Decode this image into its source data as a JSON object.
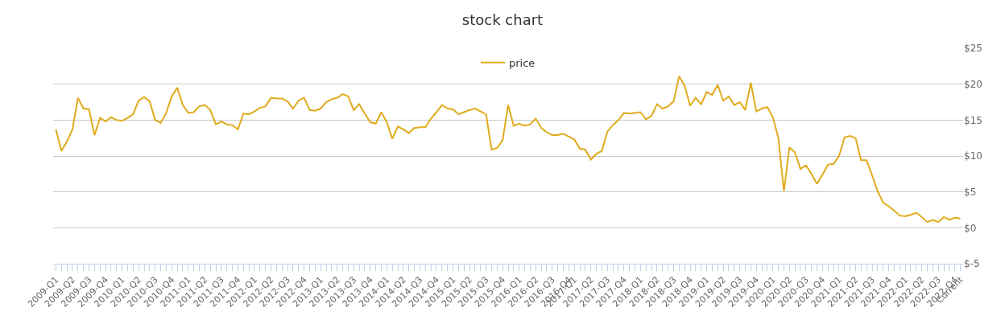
{
  "chart_data": {
    "type": "line",
    "title": "stock chart",
    "categories": [
      "2009-Q1",
      null,
      null,
      "2009-Q2",
      null,
      null,
      "2009-Q3",
      null,
      null,
      "2009-Q4",
      null,
      null,
      "2010-Q1",
      null,
      null,
      "2010-Q2",
      null,
      null,
      "2010-Q3",
      null,
      null,
      "2010-Q4",
      null,
      null,
      "2011-Q1",
      null,
      null,
      "2011-Q2",
      null,
      null,
      "2011-Q3",
      null,
      null,
      "2011-Q4",
      null,
      null,
      "2012-Q1",
      null,
      null,
      "2012-Q2",
      null,
      null,
      "2012-Q3",
      null,
      null,
      "2012-Q4",
      null,
      null,
      "2013-Q1",
      null,
      null,
      "2013-Q2",
      null,
      null,
      "2013-Q3",
      null,
      null,
      "2013-Q4",
      null,
      null,
      "2014-Q1",
      null,
      null,
      "2014-Q2",
      null,
      null,
      "2014-Q3",
      null,
      null,
      "2014-Q4",
      null,
      null,
      "2015-Q1",
      null,
      null,
      "2015-Q2",
      null,
      null,
      "2015-Q3",
      null,
      null,
      "2015-Q4",
      null,
      null,
      "2016-Q1",
      null,
      null,
      "2016-Q2",
      null,
      null,
      "2016-Q3",
      null,
      null,
      "2016-Q4",
      "2017-Q1",
      null,
      null,
      "2017-Q2",
      null,
      null,
      "2017-Q3",
      null,
      null,
      "2017-Q4",
      null,
      null,
      "2018-Q1",
      null,
      null,
      "2018-Q2",
      null,
      null,
      "2018-Q3",
      null,
      null,
      "2018-Q4",
      null,
      null,
      "2019-Q1",
      null,
      null,
      "2019-Q2",
      null,
      null,
      "2019-Q3",
      null,
      null,
      "2019-Q4",
      null,
      null,
      "2020-Q1",
      null,
      null,
      "2020-Q2",
      null,
      null,
      "2020-Q3",
      null,
      null,
      "2020-Q4",
      null,
      null,
      "2021-Q1",
      null,
      null,
      "2021-Q2",
      null,
      null,
      "2021-Q3",
      null,
      null,
      "2021-Q4",
      null,
      null,
      "2022-Q1",
      null,
      null,
      "2022-Q2",
      null,
      null,
      "2022-Q3",
      null,
      null,
      "2022-Q4",
      "Current"
    ],
    "series": [
      {
        "name": "price",
        "color": "#e0ab1d",
        "values": [
          13.7,
          10.7,
          12.0,
          13.7,
          18.1,
          16.6,
          16.5,
          12.9,
          15.3,
          14.8,
          15.4,
          15.0,
          14.9,
          15.3,
          15.8,
          17.7,
          18.2,
          17.6,
          15.0,
          14.6,
          16.0,
          18.3,
          19.5,
          17.1,
          16.0,
          16.1,
          16.9,
          17.1,
          16.4,
          14.4,
          14.8,
          14.4,
          14.3,
          13.7,
          15.9,
          15.8,
          16.2,
          16.7,
          16.9,
          18.1,
          18.0,
          18.0,
          17.6,
          16.6,
          17.7,
          18.1,
          16.4,
          16.3,
          16.6,
          17.5,
          17.9,
          18.1,
          18.6,
          18.3,
          16.4,
          17.2,
          15.9,
          14.7,
          14.5,
          16.1,
          14.7,
          12.4,
          14.1,
          13.7,
          13.2,
          13.9,
          14.0,
          14.0,
          15.2,
          16.1,
          17.1,
          16.6,
          16.5,
          15.8,
          16.1,
          16.4,
          16.6,
          16.2,
          15.8,
          10.9,
          11.1,
          12.2,
          17.1,
          14.2,
          14.5,
          14.2,
          14.4,
          15.2,
          13.9,
          13.3,
          12.9,
          12.9,
          13.1,
          12.7,
          12.3,
          11.0,
          10.9,
          9.5,
          10.3,
          10.7,
          13.4,
          14.3,
          15.0,
          16.0,
          15.9,
          16.0,
          16.1,
          15.1,
          15.6,
          17.2,
          16.6,
          16.9,
          17.6,
          21.1,
          19.8,
          17.0,
          18.1,
          17.2,
          18.9,
          18.5,
          19.9,
          17.7,
          18.3,
          17.1,
          17.5,
          16.4,
          20.2,
          16.2,
          16.6,
          16.8,
          15.4,
          12.5,
          5.1,
          11.2,
          10.5,
          8.2,
          8.7,
          7.5,
          6.1,
          7.4,
          8.8,
          8.9,
          10.0,
          12.6,
          12.8,
          12.5,
          9.4,
          9.4,
          7.3,
          5.1,
          3.5,
          3.0,
          2.4,
          1.7,
          1.6,
          1.8,
          2.1,
          1.5,
          0.8,
          1.1,
          0.8,
          1.5,
          1.1,
          1.4,
          1.3
        ]
      }
    ],
    "ylim": [
      -5,
      25
    ],
    "yticks": [
      {
        "value": -5,
        "label": "$-5"
      },
      {
        "value": 0,
        "label": "$0"
      },
      {
        "value": 5,
        "label": "$5"
      },
      {
        "value": 10,
        "label": "$10"
      },
      {
        "value": 15,
        "label": "$15"
      },
      {
        "value": 20,
        "label": "$20"
      },
      {
        "value": 25,
        "label": "$25"
      }
    ],
    "grid": "y",
    "legend": "top",
    "line_style": "solid"
  }
}
